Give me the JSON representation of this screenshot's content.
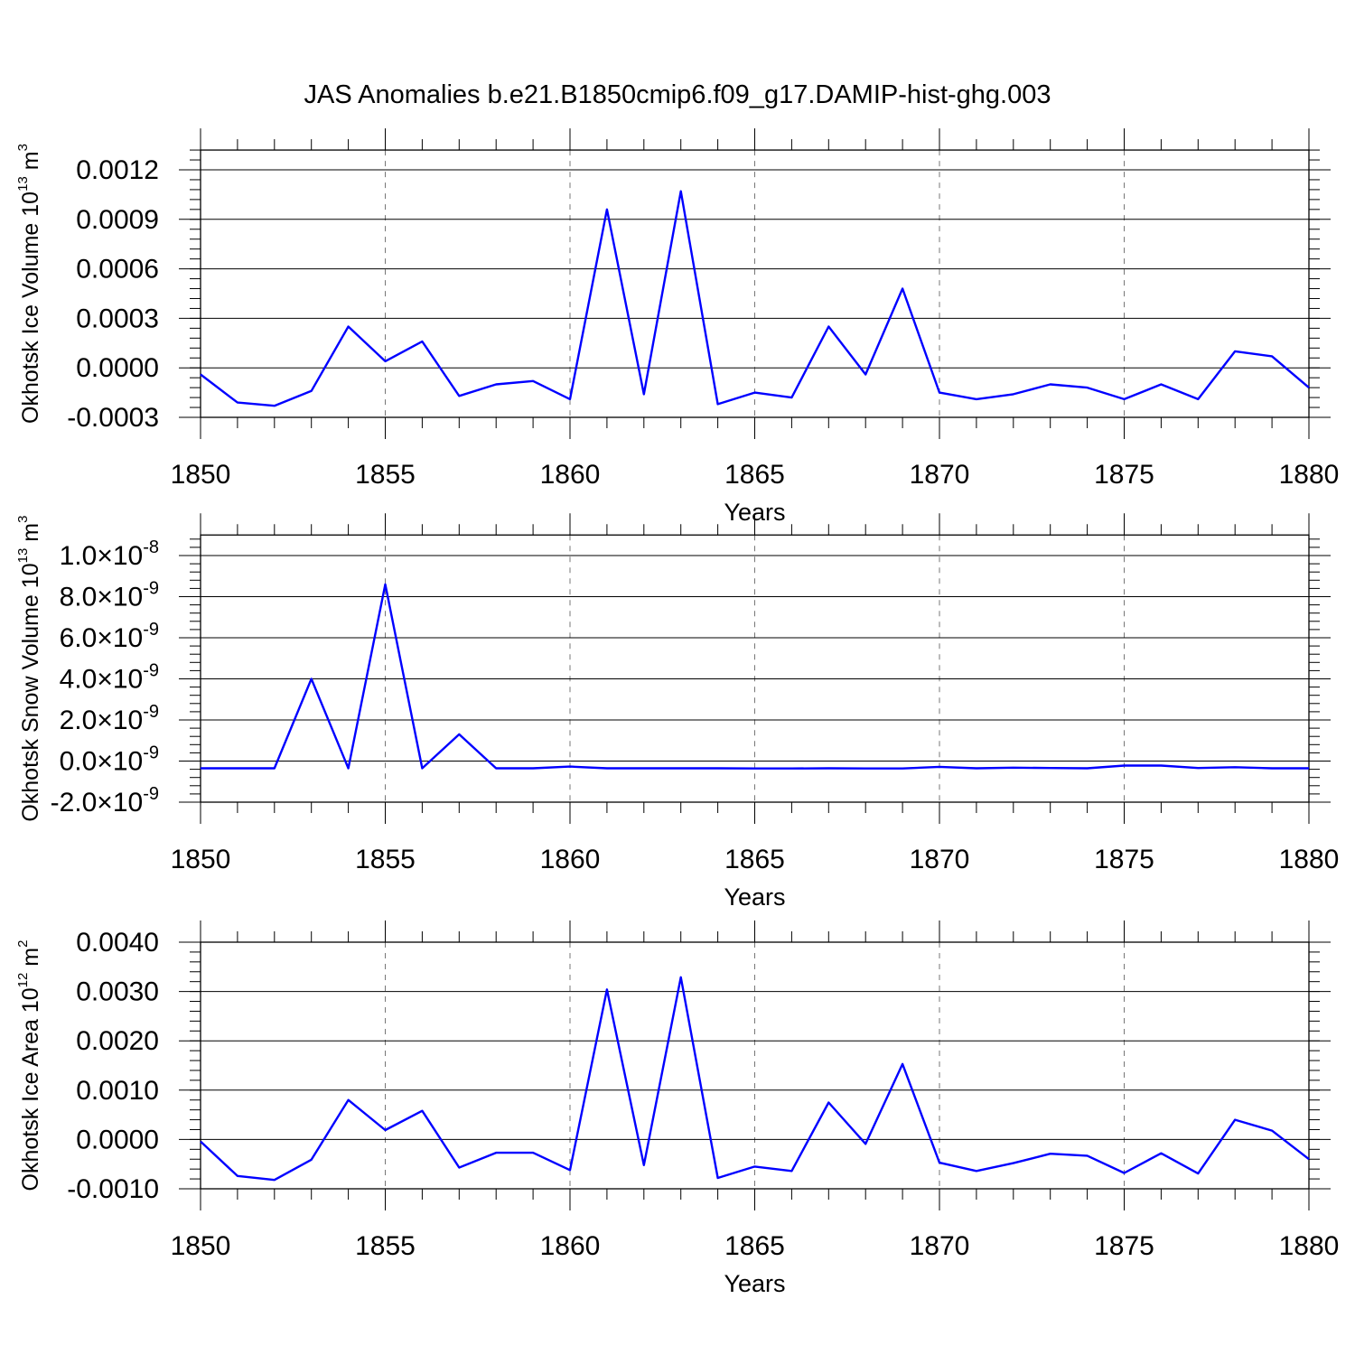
{
  "title": "JAS Anomalies b.e21.B1850cmip6.f09_g17.DAMIP-hist-ghg.003",
  "chart_data": [
    {
      "type": "line",
      "xlabel": "Years",
      "ylabel_main": "Okhotsk Ice Volume 10",
      "ylabel_sup": "13",
      "ylabel_unit": " m",
      "ylabel_unit_sup": "3",
      "xlim": [
        1850,
        1880
      ],
      "ylim": [
        -0.0003,
        0.00132
      ],
      "xticks": [
        "1850",
        "1855",
        "1860",
        "1865",
        "1870",
        "1875",
        "1880"
      ],
      "yticks": [
        {
          "v": -0.0003,
          "label": "-0.0003"
        },
        {
          "v": 0.0,
          "label": "0.0000"
        },
        {
          "v": 0.0003,
          "label": "0.0003"
        },
        {
          "v": 0.0006,
          "label": "0.0006"
        },
        {
          "v": 0.0009,
          "label": "0.0009"
        },
        {
          "v": 0.0012,
          "label": "0.0012"
        }
      ],
      "grid": "vertical dashed at major x ticks",
      "color": "#0000ff",
      "x": [
        1850,
        1851,
        1852,
        1853,
        1854,
        1855,
        1856,
        1857,
        1858,
        1859,
        1860,
        1861,
        1862,
        1863,
        1864,
        1865,
        1866,
        1867,
        1868,
        1869,
        1870,
        1871,
        1872,
        1873,
        1874,
        1875,
        1876,
        1877,
        1878,
        1879,
        1880
      ],
      "y": [
        -4e-05,
        -0.00021,
        -0.00023,
        -0.00014,
        0.00025,
        4e-05,
        0.00016,
        -0.00017,
        -0.0001,
        -8e-05,
        -0.00019,
        0.00096,
        -0.00016,
        0.00107,
        -0.00022,
        -0.00015,
        -0.00018,
        0.00025,
        -4e-05,
        0.00048,
        -0.00015,
        -0.00019,
        -0.00016,
        -0.0001,
        -0.00012,
        -0.00019,
        -0.0001,
        -0.00019,
        0.0001,
        7e-05,
        -0.00012
      ]
    },
    {
      "type": "line",
      "xlabel": "Years",
      "ylabel_main": "Okhotsk Snow Volume 10",
      "ylabel_sup": "13",
      "ylabel_unit": " m",
      "ylabel_unit_sup": "3",
      "xlim": [
        1850,
        1880
      ],
      "ylim": [
        -2e-09,
        1.1e-08
      ],
      "xticks": [
        "1850",
        "1855",
        "1860",
        "1865",
        "1870",
        "1875",
        "1880"
      ],
      "yticks": [
        {
          "v": -2e-09,
          "label": "-2.0×10",
          "sup": "-9"
        },
        {
          "v": 0.0,
          "label": "0.0×10",
          "sup": "-9"
        },
        {
          "v": 2e-09,
          "label": "2.0×10",
          "sup": "-9"
        },
        {
          "v": 4e-09,
          "label": "4.0×10",
          "sup": "-9"
        },
        {
          "v": 6e-09,
          "label": "6.0×10",
          "sup": "-9"
        },
        {
          "v": 8e-09,
          "label": "8.0×10",
          "sup": "-9"
        },
        {
          "v": 1e-08,
          "label": "1.0×10",
          "sup": "-8"
        }
      ],
      "grid": "vertical dashed at major x ticks",
      "color": "#0000ff",
      "x": [
        1850,
        1851,
        1852,
        1853,
        1854,
        1855,
        1856,
        1857,
        1858,
        1859,
        1860,
        1861,
        1862,
        1863,
        1864,
        1865,
        1866,
        1867,
        1868,
        1869,
        1870,
        1871,
        1872,
        1873,
        1874,
        1875,
        1876,
        1877,
        1878,
        1879,
        1880
      ],
      "y": [
        -3.5e-10,
        -3.5e-10,
        -3.5e-10,
        4e-09,
        -3.5e-10,
        8.6e-09,
        -3.5e-10,
        1.3e-09,
        -3.5e-10,
        -3.5e-10,
        -2.7e-10,
        -3.5e-10,
        -3.5e-10,
        -3.5e-10,
        -3.5e-10,
        -3.6e-10,
        -3.6e-10,
        -3.5e-10,
        -3.6e-10,
        -3.6e-10,
        -2.8e-10,
        -3.5e-10,
        -3.2e-10,
        -3.4e-10,
        -3.5e-10,
        -2.2e-10,
        -2.2e-10,
        -3.4e-10,
        -3e-10,
        -3.5e-10,
        -3.5e-10
      ]
    },
    {
      "type": "line",
      "xlabel": "Years",
      "ylabel_main": "Okhotsk Ice Area 10",
      "ylabel_sup": "12",
      "ylabel_unit": " m",
      "ylabel_unit_sup": "2",
      "xlim": [
        1850,
        1880
      ],
      "ylim": [
        -0.001,
        0.004
      ],
      "xticks": [
        "1850",
        "1855",
        "1860",
        "1865",
        "1870",
        "1875",
        "1880"
      ],
      "yticks": [
        {
          "v": -0.001,
          "label": "-0.0010"
        },
        {
          "v": 0.0,
          "label": "0.0000"
        },
        {
          "v": 0.001,
          "label": "0.0010"
        },
        {
          "v": 0.002,
          "label": "0.0020"
        },
        {
          "v": 0.003,
          "label": "0.0030"
        },
        {
          "v": 0.004,
          "label": "0.0040"
        }
      ],
      "grid": "vertical dashed at major x ticks",
      "color": "#0000ff",
      "x": [
        1850,
        1851,
        1852,
        1853,
        1854,
        1855,
        1856,
        1857,
        1858,
        1859,
        1860,
        1861,
        1862,
        1863,
        1864,
        1865,
        1866,
        1867,
        1868,
        1869,
        1870,
        1871,
        1872,
        1873,
        1874,
        1875,
        1876,
        1877,
        1878,
        1879,
        1880
      ],
      "y": [
        -4e-05,
        -0.00074,
        -0.00082,
        -0.00041,
        0.0008,
        0.00019,
        0.00058,
        -0.00057,
        -0.00027,
        -0.00027,
        -0.00062,
        0.00304,
        -0.00052,
        0.00329,
        -0.00078,
        -0.00055,
        -0.00064,
        0.00075,
        -9e-05,
        0.00153,
        -0.00047,
        -0.00064,
        -0.00048,
        -0.00029,
        -0.00033,
        -0.00068,
        -0.00028,
        -0.00069,
        0.0004,
        0.00018,
        -0.0004
      ]
    }
  ]
}
